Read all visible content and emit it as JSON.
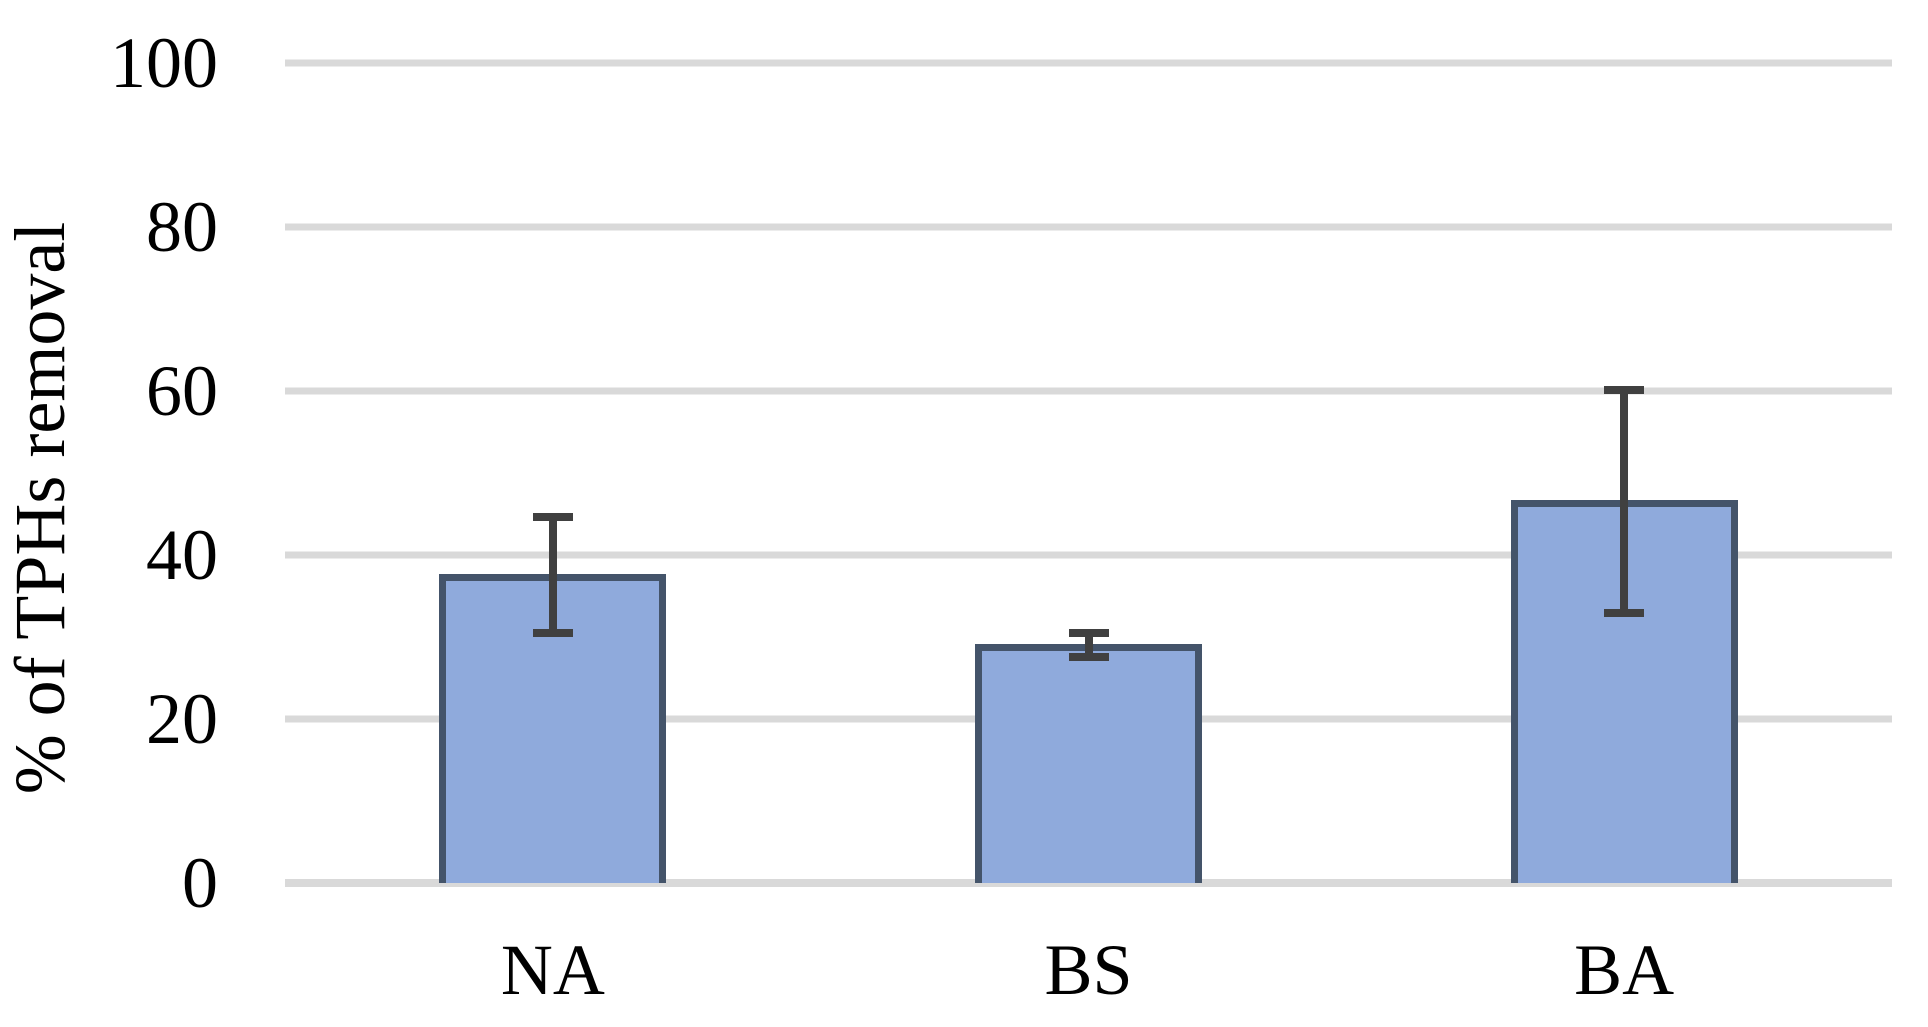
{
  "chart_data": {
    "type": "bar",
    "title": "",
    "ylabel": "% of TPHs removal",
    "xlabel": "",
    "categories": [
      "NA",
      "BS",
      "BA"
    ],
    "values": [
      37.7,
      29.2,
      46.7
    ],
    "error_upper": [
      45.1,
      31.0,
      60.6
    ],
    "error_lower": [
      30.0,
      27.1,
      32.4
    ],
    "yticks": [
      0,
      20,
      40,
      60,
      80,
      100
    ],
    "ylim": [
      0,
      100
    ],
    "grid": true,
    "legend": "none",
    "colors": {
      "bar_fill": "#8FAADC",
      "bar_border": "#44546A",
      "error_bar": "#404040",
      "gridline": "#D9D9D9",
      "text": "#000000",
      "background": "#FFFFFF"
    }
  }
}
